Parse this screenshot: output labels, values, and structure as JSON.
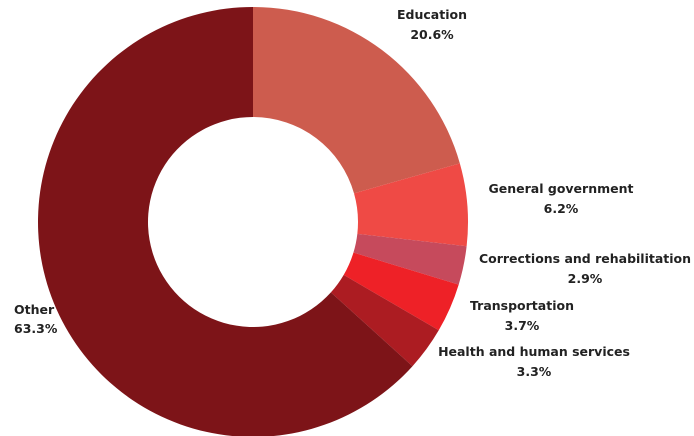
{
  "chart_data": {
    "type": "pie",
    "variant": "donut",
    "title": "",
    "start": "top",
    "direction": "clockwise",
    "slices": [
      {
        "label": "Education",
        "value": 20.6,
        "value_label": "20.6%",
        "color": "#cd5c4e"
      },
      {
        "label": "General government",
        "value": 6.2,
        "value_label": "6.2%",
        "color": "#ef4a45"
      },
      {
        "label": "Corrections and rehabilitation",
        "value": 2.9,
        "value_label": "2.9%",
        "color": "#c64a5c"
      },
      {
        "label": "Transportation",
        "value": 3.7,
        "value_label": "3.7%",
        "color": "#ee2127"
      },
      {
        "label": "Health and human services",
        "value": 3.3,
        "value_label": "3.3%",
        "color": "#ac1c22"
      },
      {
        "label": "Other",
        "value": 63.3,
        "value_label": "63.3%",
        "color": "#7d1418"
      }
    ]
  }
}
